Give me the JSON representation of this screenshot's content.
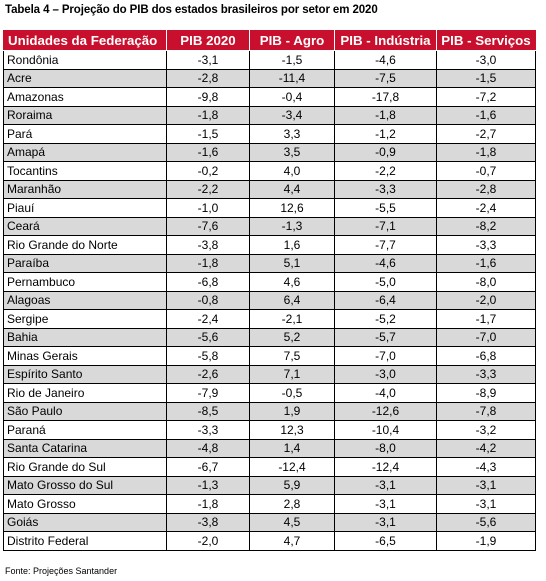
{
  "caption": "Tabela 4 – Projeção do PIB dos estados brasileiros por setor em 2020",
  "headers": [
    "Unidades da Federação",
    "PIB 2020",
    "PIB - Agro",
    "PIB - Indústria",
    "PIB - Serviços"
  ],
  "rows": [
    [
      "Rondônia",
      "-3,1",
      "-1,5",
      "-4,6",
      "-3,0"
    ],
    [
      "Acre",
      "-2,8",
      "-11,4",
      "-7,5",
      "-1,5"
    ],
    [
      "Amazonas",
      "-9,8",
      "-0,4",
      "-17,8",
      "-7,2"
    ],
    [
      "Roraima",
      "-1,8",
      "-3,4",
      "-1,8",
      "-1,6"
    ],
    [
      "Pará",
      "-1,5",
      "3,3",
      "-1,2",
      "-2,7"
    ],
    [
      "Amapá",
      "-1,6",
      "3,5",
      "-0,9",
      "-1,8"
    ],
    [
      "Tocantins",
      "-0,2",
      "4,0",
      "-2,2",
      "-0,7"
    ],
    [
      "Maranhão",
      "-2,2",
      "4,4",
      "-3,3",
      "-2,8"
    ],
    [
      "Piauí",
      "-1,0",
      "12,6",
      "-5,5",
      "-2,4"
    ],
    [
      "Ceará",
      "-7,6",
      "-1,3",
      "-7,1",
      "-8,2"
    ],
    [
      "Rio Grande do Norte",
      "-3,8",
      "1,6",
      "-7,7",
      "-3,3"
    ],
    [
      "Paraíba",
      "-1,8",
      "5,1",
      "-4,6",
      "-1,6"
    ],
    [
      "Pernambuco",
      "-6,8",
      "4,6",
      "-5,0",
      "-8,0"
    ],
    [
      "Alagoas",
      "-0,8",
      "6,4",
      "-6,4",
      "-2,0"
    ],
    [
      "Sergipe",
      "-2,4",
      "-2,1",
      "-5,2",
      "-1,7"
    ],
    [
      "Bahia",
      "-5,6",
      "5,2",
      "-5,7",
      "-7,0"
    ],
    [
      "Minas Gerais",
      "-5,8",
      "7,5",
      "-7,0",
      "-6,8"
    ],
    [
      "Espírito Santo",
      "-2,6",
      "7,1",
      "-3,0",
      "-3,3"
    ],
    [
      "Rio de Janeiro",
      "-7,9",
      "-0,5",
      "-4,0",
      "-8,9"
    ],
    [
      "São Paulo",
      "-8,5",
      "1,9",
      "-12,6",
      "-7,8"
    ],
    [
      "Paraná",
      "-3,3",
      "12,3",
      "-10,4",
      "-3,2"
    ],
    [
      "Santa Catarina",
      "-4,8",
      "1,4",
      "-8,0",
      "-4,2"
    ],
    [
      "Rio Grande do Sul",
      "-6,7",
      "-12,4",
      "-12,4",
      "-4,3"
    ],
    [
      "Mato Grosso do Sul",
      "-1,3",
      "5,9",
      "-3,1",
      "-3,1"
    ],
    [
      "Mato Grosso",
      "-1,8",
      "2,8",
      "-3,1",
      "-3,1"
    ],
    [
      "Goiás",
      "-3,8",
      "4,5",
      "-3,1",
      "-5,6"
    ],
    [
      "Distrito Federal",
      "-2,0",
      "4,7",
      "-6,5",
      "-1,9"
    ]
  ],
  "source": "Fonte: Projeções Santander",
  "colors": {
    "header_bg": "#c8102e",
    "header_text": "#ffffff",
    "shaded_row": "#d9d9d9"
  }
}
